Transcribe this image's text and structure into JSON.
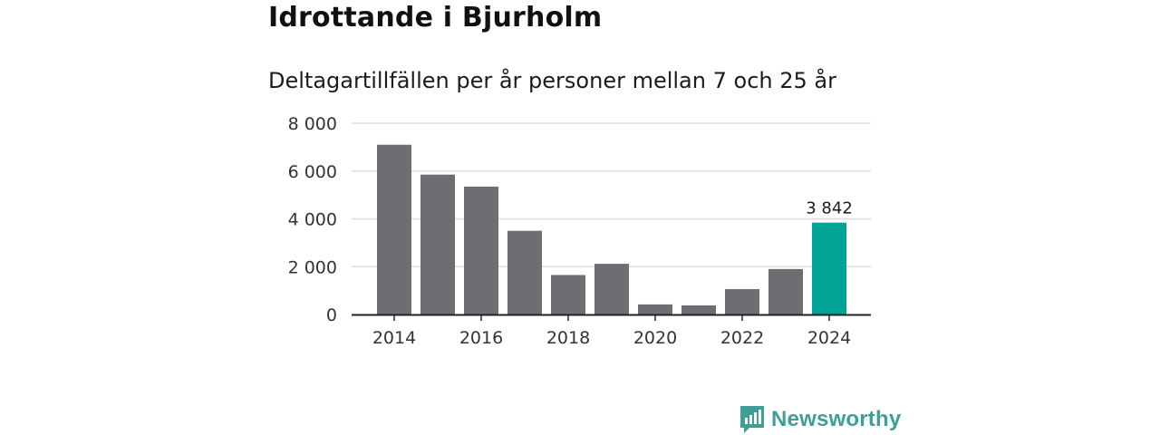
{
  "title": "Idrottande i Bjurholm",
  "subtitle": "Deltagartillfällen per år personer mellan 7 och 25 år",
  "brand": {
    "name": "Newsworthy",
    "icon": "newsworthy-logo-icon",
    "color": "#3f9e96"
  },
  "colors": {
    "bar": "#6e6d72",
    "highlight": "#00a396",
    "grid": "#dddddd",
    "axis": "#222222"
  },
  "chart_data": {
    "type": "bar",
    "categories": [
      "2014",
      "2015",
      "2016",
      "2017",
      "2018",
      "2019",
      "2020",
      "2021",
      "2022",
      "2023",
      "2024"
    ],
    "values": [
      7100,
      5850,
      5350,
      3500,
      1650,
      2120,
      420,
      380,
      1060,
      1900,
      3842
    ],
    "highlight_index": 10,
    "x_tick_labels": [
      "2014",
      "2016",
      "2018",
      "2020",
      "2022",
      "2024"
    ],
    "y_ticks": [
      0,
      2000,
      4000,
      6000,
      8000
    ],
    "y_tick_labels": [
      "0",
      "2 000",
      "4 000",
      "6 000",
      "8 000"
    ],
    "ylim": [
      0,
      8000
    ],
    "data_labels": [
      {
        "index": 10,
        "text": "3 842"
      }
    ],
    "grid": true
  }
}
